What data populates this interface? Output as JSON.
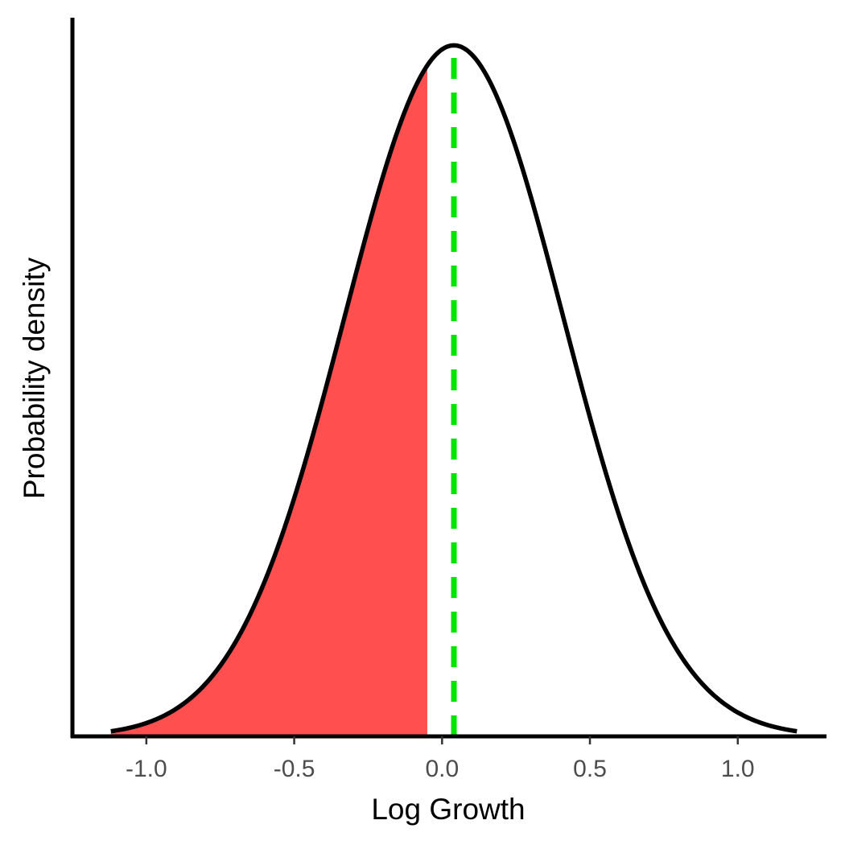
{
  "chart_data": {
    "type": "area",
    "title": "",
    "xlabel": "Log Growth",
    "ylabel": "Probability density",
    "xlim": [
      -1.25,
      1.3
    ],
    "ylim": [
      0,
      1.04
    ],
    "x_ticks": [
      -1.0,
      -0.5,
      0.0,
      0.5,
      1.0
    ],
    "x_tick_labels": [
      "-1.0",
      "-0.5",
      "0.0",
      "0.5",
      "1.0"
    ],
    "y_ticks_shown": false,
    "grid": false,
    "legend": "none",
    "density": {
      "distribution": "normal",
      "mean": 0.04,
      "sd": 0.37,
      "x_range": [
        -1.12,
        1.2
      ],
      "normalized_peak": 1.0
    },
    "shaded_region": {
      "x_range": [
        -1.12,
        -0.05
      ],
      "color": "#ff4f4f"
    },
    "reference_line": {
      "x": 0.04,
      "style": "dashed",
      "color": "#00e600"
    },
    "curve_color": "#000000"
  }
}
